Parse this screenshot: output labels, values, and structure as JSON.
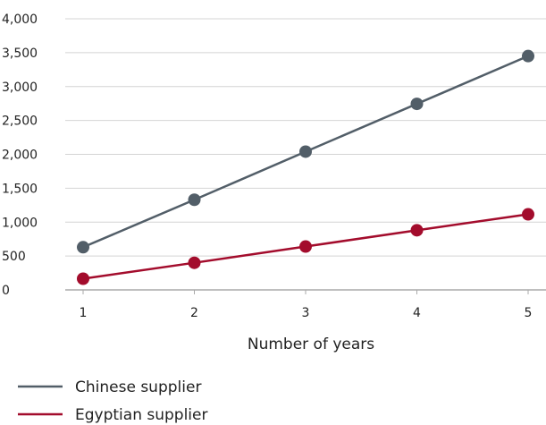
{
  "chart_data": {
    "type": "line",
    "title": "",
    "xlabel": "Number of years",
    "ylabel": "",
    "x": [
      1,
      2,
      3,
      4,
      5
    ],
    "x_tick_labels": [
      "1",
      "2",
      "3",
      "4",
      "5"
    ],
    "ylim": [
      0,
      4000
    ],
    "y_ticks": [
      0,
      500,
      1000,
      1500,
      2000,
      2500,
      3000,
      3500,
      4000
    ],
    "y_tick_labels": [
      "0",
      "500",
      "1,000",
      "1,500",
      "2,000",
      "2,500",
      "3,000",
      "3,500",
      "4,000"
    ],
    "grid": "horizontal",
    "legend_position": "bottom-left",
    "series": [
      {
        "name": "Chinese supplier",
        "color": "#525e68",
        "values": [
          630,
          1330,
          2040,
          2745,
          3450
        ]
      },
      {
        "name": "Egyptian supplier",
        "color": "#a30c2c",
        "values": [
          165,
          400,
          640,
          880,
          1115
        ]
      }
    ]
  }
}
